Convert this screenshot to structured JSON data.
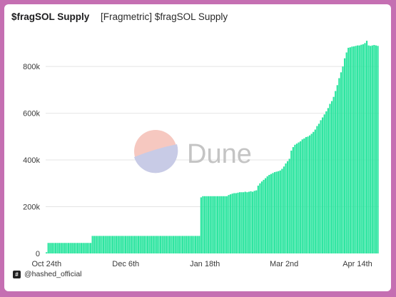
{
  "header": {
    "title": "$fragSOL Supply",
    "subtitle": "[Fragmetric] $fragSOL Supply"
  },
  "watermark": {
    "text": "Dune"
  },
  "footer": {
    "author": "@hashed_official",
    "badge_icon": "hash-icon"
  },
  "colors": {
    "bar": "#2de5a0",
    "grid": "#e4e4e4",
    "background": "#ffffff",
    "frame": "#c56fb2"
  },
  "chart_data": {
    "type": "bar",
    "title": "$fragSOL Supply",
    "xlabel": "",
    "ylabel": "",
    "ylim": [
      0,
      950000
    ],
    "y_ticks": [
      0,
      200000,
      400000,
      600000,
      800000
    ],
    "y_tick_labels": [
      "0",
      "200k",
      "400k",
      "600k",
      "800k"
    ],
    "x_tick_labels": [
      {
        "label": "Oct 24th",
        "day": 0
      },
      {
        "label": "Dec 6th",
        "day": 43
      },
      {
        "label": "Jan 18th",
        "day": 86
      },
      {
        "label": "Mar 2nd",
        "day": 129
      },
      {
        "label": "Apr 14th",
        "day": 172
      }
    ],
    "grid": true,
    "legend": "none",
    "series": [
      {
        "values": [
          5000,
          45000,
          45000,
          45000,
          45000,
          45000,
          45000,
          45000,
          45000,
          45000,
          45000,
          45000,
          45000,
          45000,
          45000,
          45000,
          45000,
          45000,
          45000,
          45000,
          45000,
          45000,
          45000,
          45000,
          45000,
          75000,
          75000,
          75000,
          75000,
          75000,
          75000,
          75000,
          75000,
          75000,
          75000,
          75000,
          75000,
          75000,
          75000,
          75000,
          75000,
          75000,
          75000,
          75000,
          75000,
          75000,
          75000,
          75000,
          75000,
          75000,
          75000,
          75000,
          75000,
          75000,
          75000,
          75000,
          75000,
          75000,
          75000,
          75000,
          75000,
          75000,
          75000,
          75000,
          75000,
          75000,
          75000,
          75000,
          75000,
          75000,
          75000,
          75000,
          75000,
          75000,
          75000,
          75000,
          75000,
          75000,
          75000,
          75000,
          75000,
          75000,
          75000,
          75000,
          240000,
          245000,
          245000,
          245000,
          245000,
          245000,
          245000,
          245000,
          245000,
          245000,
          245000,
          245000,
          245000,
          245000,
          245000,
          250000,
          253000,
          256000,
          258000,
          258000,
          260000,
          262000,
          262000,
          262000,
          264000,
          262000,
          264000,
          266000,
          264000,
          268000,
          270000,
          290000,
          300000,
          308000,
          315000,
          322000,
          330000,
          336000,
          340000,
          344000,
          348000,
          350000,
          352000,
          355000,
          362000,
          372000,
          385000,
          395000,
          405000,
          440000,
          455000,
          465000,
          470000,
          475000,
          480000,
          488000,
          492000,
          498000,
          500000,
          505000,
          512000,
          520000,
          530000,
          545000,
          555000,
          570000,
          582000,
          595000,
          608000,
          622000,
          640000,
          652000,
          670000,
          695000,
          720000,
          750000,
          775000,
          800000,
          835000,
          860000,
          880000,
          882000,
          885000,
          886000,
          888000,
          890000,
          890000,
          893000,
          895000,
          900000,
          910000,
          890000,
          888000,
          890000,
          892000,
          890000,
          888000
        ]
      }
    ]
  }
}
